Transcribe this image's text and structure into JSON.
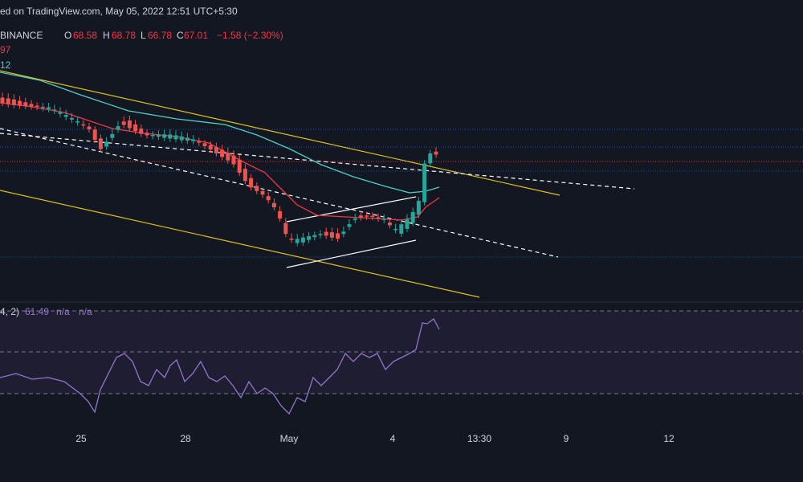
{
  "header": {
    "source": "ed on TradingView.com, May 05, 2022 12:51 UTC+5:30"
  },
  "legend": {
    "symbol": "BINANCE",
    "open_label": "O",
    "open": "68.58",
    "high_label": "H",
    "high": "68.78",
    "low_label": "L",
    "low": "66.78",
    "close_label": "C",
    "close": "67.01",
    "change": "−1.58 (−2.30%)",
    "ma_red": "97",
    "ma_teal": "12"
  },
  "rsi": {
    "params": "4, 2)",
    "value": "61.49",
    "na1": "n/a",
    "na2": "n/a"
  },
  "x_axis": {
    "labels": [
      "25",
      "28",
      "May",
      "4",
      "13:30",
      "9",
      "12"
    ]
  }
}
